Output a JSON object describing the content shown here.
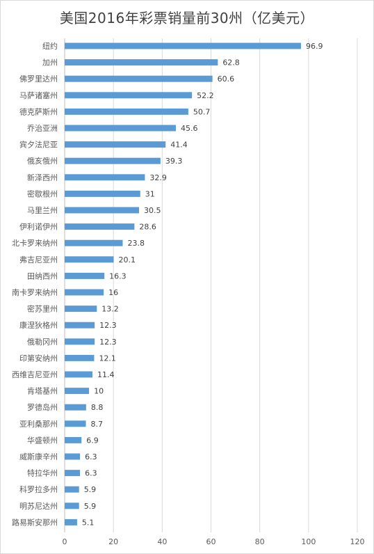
{
  "chart_data": {
    "type": "bar",
    "orientation": "horizontal",
    "title": "美国2016年彩票销量前30州（亿美元）",
    "xlabel": "",
    "ylabel": "",
    "xlim": [
      0,
      120
    ],
    "xticks": [
      0,
      20,
      40,
      60,
      80,
      100,
      120
    ],
    "grid": "vertical",
    "legend": "none",
    "bar_color": "#5b9bd5",
    "categories": [
      "纽约",
      "加州",
      "佛罗里达州",
      "马萨诸塞州",
      "德克萨斯州",
      "乔治亚洲",
      "宾夕法尼亚",
      "俄亥俄州",
      "新泽西州",
      "密歇根州",
      "马里兰州",
      "伊利诺伊州",
      "北卡罗来纳州",
      "弗吉尼亚州",
      "田纳西州",
      "南卡罗来纳州",
      "密苏里州",
      "康涅狄格州",
      "俄勒冈州",
      "印第安纳州",
      "西维吉尼亚州",
      "肯塔基州",
      "罗德岛州",
      "亚利桑那州",
      "华盛顿州",
      "威斯康辛州",
      "特拉华州",
      "科罗拉多州",
      "明苏尼达州",
      "路易斯安那州"
    ],
    "values": [
      96.9,
      62.8,
      60.6,
      52.2,
      50.7,
      45.6,
      41.4,
      39.3,
      32.9,
      31,
      30.5,
      28.6,
      23.8,
      20.1,
      16.3,
      16,
      13.2,
      12.3,
      12.3,
      12.1,
      11.4,
      10,
      8.8,
      8.7,
      6.9,
      6.3,
      6.3,
      5.9,
      5.9,
      5.1
    ]
  }
}
